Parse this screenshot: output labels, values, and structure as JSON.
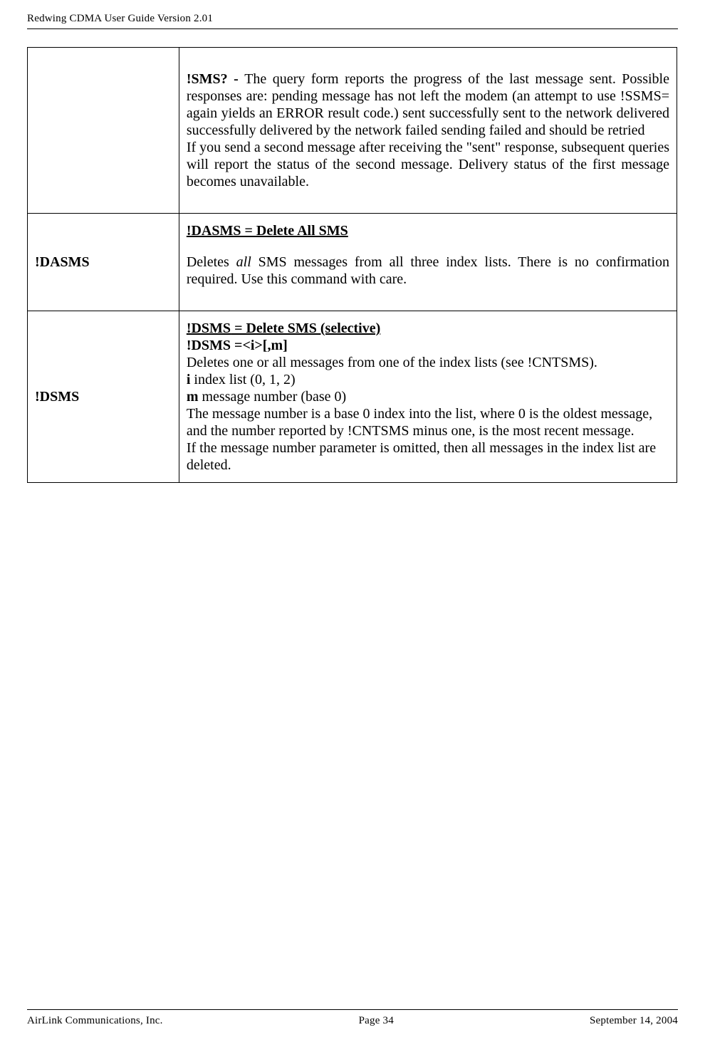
{
  "header": {
    "title": "Redwing CDMA User Guide Version 2.01"
  },
  "footer": {
    "left": "AirLink Communications, Inc.",
    "center": "Page 34",
    "right": "September 14, 2004"
  },
  "rows": [
    {
      "left": "",
      "right": {
        "p1_bold": "!SMS? - ",
        "p1_rest": "The query form reports the progress of the last message sent. Possible responses are: pending message has not left the modem (an attempt to use !SSMS= again yields an ERROR result code.) sent successfully sent to the network delivered successfully delivered by the network failed sending failed and should be retried",
        "p2": "If you send a second message after receiving the \"sent\" response, subsequent queries will report the status of the second message. Delivery status of the first message becomes unavailable."
      }
    },
    {
      "left": "!DASMS",
      "right": {
        "title_bold": "!DASMS",
        "title_under": " = Delete All SMS",
        "p1a": "Deletes ",
        "p1b_italic": "all",
        "p1c": " SMS messages from all three index lists. There is no confirmation required. Use this command with care."
      }
    },
    {
      "left": "!DSMS",
      "right": {
        "title_bold": "!DSMS",
        "title_under": " = Delete SMS (selective)",
        "syntax": "!DSMS =<i>[,m]",
        "p1": "Deletes one or all messages from one of the index lists (see !CNTSMS).",
        "p2a": "i",
        "p2b": " index list (0, 1, 2)",
        "p3a": "m",
        "p3b": " message number (base 0)",
        "p4": "The message number is a base 0 index into the list, where 0 is the oldest message, and the number reported by !CNTSMS minus one, is the most recent message.",
        "p5": "If the message number parameter is omitted, then all messages in the index list are deleted."
      }
    }
  ]
}
